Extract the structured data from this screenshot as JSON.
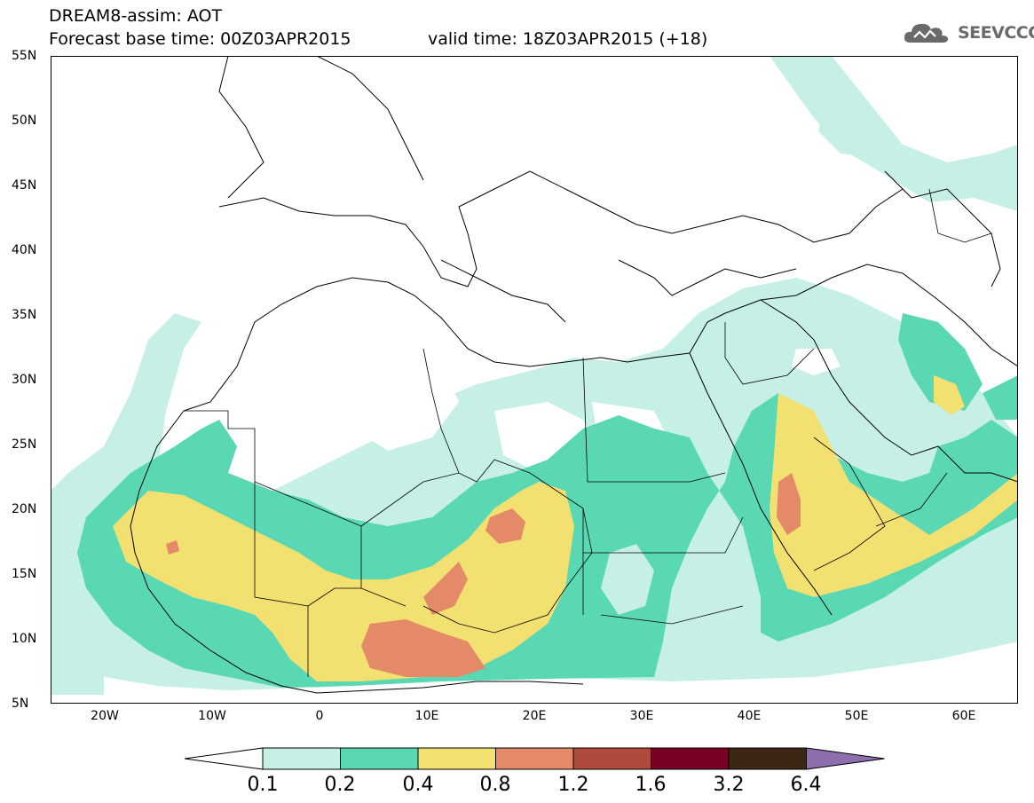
{
  "header": {
    "line1": "DREAM8-assim: AOT",
    "line2": "Forecast base time: 00Z03APR2015",
    "line3": "valid time: 18Z03APR2015 (+18)",
    "brand": "SEEVCCC"
  },
  "map": {
    "lat_labels": [
      "55N",
      "50N",
      "45N",
      "40N",
      "35N",
      "30N",
      "25N",
      "20N",
      "15N",
      "10N",
      "5N"
    ],
    "lon_labels": [
      "20W",
      "10W",
      "0",
      "10E",
      "20E",
      "30E",
      "40E",
      "50E",
      "60E"
    ],
    "lon_range": [
      -25,
      65
    ],
    "lat_range": [
      5,
      55
    ],
    "colors": {
      "0.1-0.2": "#c6f0e6",
      "0.2-0.4": "#5ad8b4",
      "0.4-0.8": "#f2e070",
      "0.8-1.2": "#e48a68",
      "1.2-1.6": "#b04a3c",
      "1.6-3.2": "#7a0026",
      "3.2-6.4": "#3d2614",
      ">6.4": "#8e6fae"
    }
  },
  "colorbar": {
    "labels": [
      "0.1",
      "0.2",
      "0.4",
      "0.8",
      "1.2",
      "1.6",
      "3.2",
      "6.4"
    ],
    "colors": [
      "#c6f0e6",
      "#5ad8b4",
      "#f2e070",
      "#e48a68",
      "#b04a3c",
      "#7a0026",
      "#3d2614"
    ],
    "low_color": "#ffffff",
    "high_color": "#8e6fae"
  }
}
